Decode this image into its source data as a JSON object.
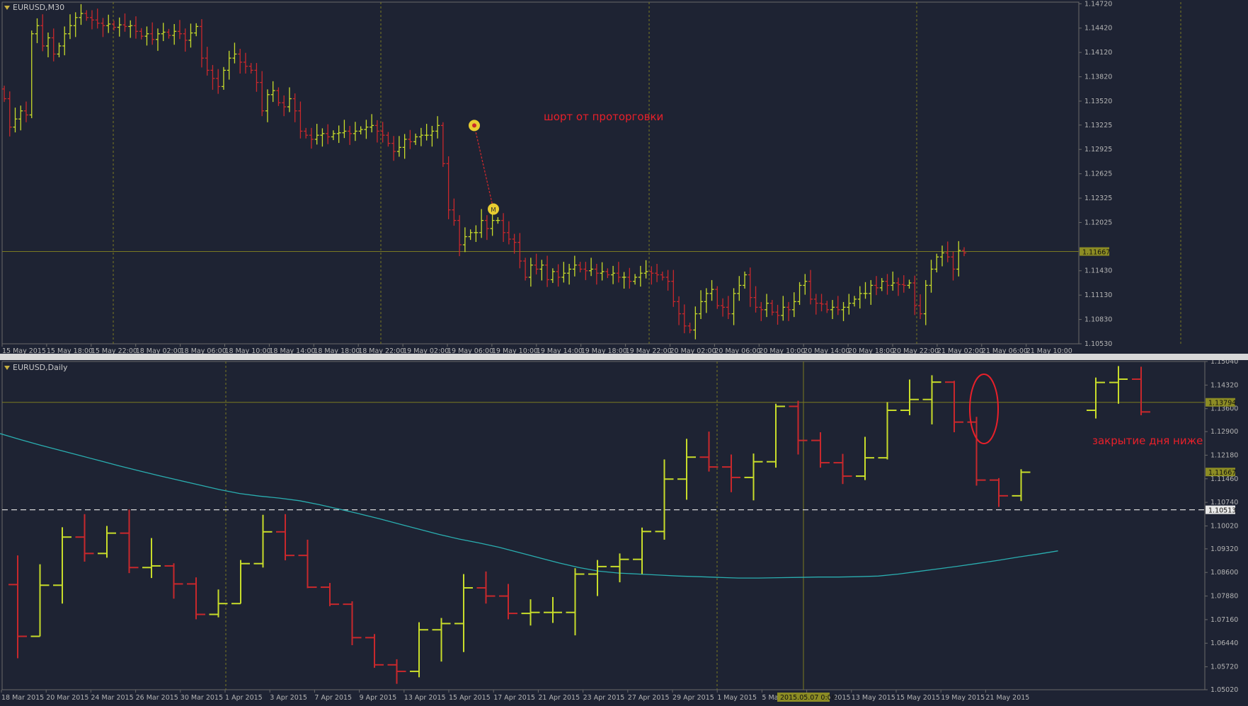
{
  "colors": {
    "background": "#1e2333",
    "grid": "#7a7a22",
    "frame": "#6a6a6a",
    "bull": "#c8dc2a",
    "bear": "#c8282c",
    "axis_text": "#b4b4b4",
    "ma_line": "#2aaeb0",
    "annotation": "#e8202a",
    "price_label_bg": "#8c8c24",
    "marker": "#e8cc30"
  },
  "chart_data": [
    {
      "type": "ohlc",
      "title": "EURUSD,M30",
      "symbol": "EURUSD",
      "timeframe": "M30",
      "ylim": [
        1.1053,
        1.1474
      ],
      "y_ticks": [
        "1.14720",
        "1.14420",
        "1.14120",
        "1.13820",
        "1.13520",
        "1.13225",
        "1.12925",
        "1.12625",
        "1.12325",
        "1.12025",
        "1.11430",
        "1.11130",
        "1.10830",
        "1.10530"
      ],
      "x_labels": [
        "15 May 2015",
        "15 May 18:00",
        "15 May 22:00",
        "18 May 02:00",
        "18 May 06:00",
        "18 May 10:00",
        "18 May 14:00",
        "18 May 18:00",
        "18 May 22:00",
        "19 May 02:00",
        "19 May 06:00",
        "19 May 10:00",
        "19 May 14:00",
        "19 May 18:00",
        "19 May 22:00",
        "20 May 02:00",
        "20 May 06:00",
        "20 May 10:00",
        "20 May 14:00",
        "20 May 18:00",
        "20 May 22:00",
        "21 May 02:00",
        "21 May 06:00",
        "21 May 10:00"
      ],
      "current_price": "1.11667",
      "annotation": "шорт от проторговки",
      "trade_entry": 1.1322,
      "trade_exit": 1.1219,
      "bar_closes": [
        1.1355,
        1.132,
        1.133,
        1.134,
        1.1335,
        1.1435,
        1.1445,
        1.142,
        1.143,
        1.141,
        1.142,
        1.1435,
        1.1445,
        1.1455,
        1.146,
        1.1455,
        1.1452,
        1.1448,
        1.1445,
        1.1447,
        1.1443,
        1.1446,
        1.1444,
        1.1445,
        1.1438,
        1.1432,
        1.1435,
        1.1428,
        1.1435,
        1.1437,
        1.1433,
        1.1438,
        1.1435,
        1.1427,
        1.1436,
        1.1444,
        1.1405,
        1.139,
        1.138,
        1.137,
        1.139,
        1.1405,
        1.141,
        1.14,
        1.1395,
        1.139,
        1.1375,
        1.134,
        1.136,
        1.1365,
        1.135,
        1.1345,
        1.1355,
        1.134,
        1.1315,
        1.131,
        1.1305,
        1.131,
        1.1312,
        1.1308,
        1.1312,
        1.1313,
        1.1315,
        1.1312,
        1.1315,
        1.1317,
        1.132,
        1.1322,
        1.1315,
        1.131,
        1.13,
        1.129,
        1.1295,
        1.1305,
        1.1302,
        1.1308,
        1.131,
        1.131,
        1.1315,
        1.1322,
        1.1275,
        1.1218,
        1.1205,
        1.1175,
        1.1185,
        1.119,
        1.119,
        1.1205,
        1.1195,
        1.1205,
        1.1205,
        1.119,
        1.1182,
        1.1178,
        1.1155,
        1.1135,
        1.115,
        1.1145,
        1.115,
        1.1132,
        1.1142,
        1.1135,
        1.114,
        1.1145,
        1.115,
        1.1145,
        1.1143,
        1.1145,
        1.114,
        1.1142,
        1.1138,
        1.114,
        1.1135,
        1.1135,
        1.113,
        1.1135,
        1.114,
        1.1142,
        1.114,
        1.1138,
        1.1135,
        1.113,
        1.1105,
        1.109,
        1.1075,
        1.107,
        1.109,
        1.1105,
        1.1115,
        1.112,
        1.11,
        1.1098,
        1.109,
        1.1115,
        1.1125,
        1.1138,
        1.111,
        1.1098,
        1.1095,
        1.1103,
        1.1092,
        1.1088,
        1.1098,
        1.1095,
        1.1105,
        1.1125,
        1.113,
        1.1108,
        1.1103,
        1.1102,
        1.1095,
        1.1098,
        1.1095,
        1.1098,
        1.1103,
        1.1108,
        1.1115,
        1.1115,
        1.1125,
        1.1122,
        1.113,
        1.1125,
        1.1128,
        1.1126,
        1.1125,
        1.1128,
        1.11,
        1.109,
        1.1125,
        1.1145,
        1.116,
        1.1165,
        1.116,
        1.1145,
        1.1168,
        1.1165
      ]
    },
    {
      "type": "ohlc",
      "title": "EURUSD,Daily",
      "symbol": "EURUSD",
      "timeframe": "Daily",
      "ylim": [
        1.0502,
        1.1504
      ],
      "y_ticks": [
        "1.15040",
        "1.14320",
        "1.13600",
        "1.12900",
        "1.12180",
        "1.11460",
        "1.10740",
        "1.10020",
        "1.09320",
        "1.08600",
        "1.07880",
        "1.07160",
        "1.06440",
        "1.05720",
        "1.05020"
      ],
      "x_labels": [
        "18 Mar 2015",
        "20 Mar 2015",
        "24 Mar 2015",
        "26 Mar 2015",
        "30 Mar 2015",
        "1 Apr 2015",
        "3 Apr 2015",
        "7 Apr 2015",
        "9 Apr 2015",
        "13 Apr 2015",
        "15 Apr 2015",
        "17 Apr 2015",
        "21 Apr 2015",
        "23 Apr 2015",
        "27 Apr 2015",
        "29 Apr 2015",
        "1 May 2015",
        "5 May 2015",
        "11 May 2015",
        "13 May 2015",
        "15 May 2015",
        "19 May 2015",
        "21 May 2015"
      ],
      "crosshair_time_label": "2015.05.07 0:00",
      "price_labels": [
        "1.13794",
        "1.11667",
        "1.10513"
      ],
      "annotation": "закрытие дня ниже",
      "bars": [
        {
          "o": 1.0823,
          "h": 1.0912,
          "l": 1.0598,
          "c": 1.0665
        },
        {
          "o": 1.0665,
          "h": 1.0885,
          "l": 1.0665,
          "c": 1.0821
        },
        {
          "o": 1.0821,
          "h": 1.0998,
          "l": 1.0765,
          "c": 1.0968
        },
        {
          "o": 1.0968,
          "h": 1.1038,
          "l": 1.0893,
          "c": 1.0918
        },
        {
          "o": 1.0918,
          "h": 1.1002,
          "l": 1.0905,
          "c": 1.098
        },
        {
          "o": 1.098,
          "h": 1.1052,
          "l": 1.0858,
          "c": 1.0875
        },
        {
          "o": 1.0875,
          "h": 1.0965,
          "l": 1.0843,
          "c": 1.088
        },
        {
          "o": 1.088,
          "h": 1.0888,
          "l": 1.078,
          "c": 1.0825
        },
        {
          "o": 1.0825,
          "h": 1.0845,
          "l": 1.0717,
          "c": 1.0732
        },
        {
          "o": 1.0732,
          "h": 1.0808,
          "l": 1.0723,
          "c": 1.0765
        },
        {
          "o": 1.0765,
          "h": 1.0898,
          "l": 1.0765,
          "c": 1.0887
        },
        {
          "o": 1.0887,
          "h": 1.1036,
          "l": 1.0875,
          "c": 1.0984
        },
        {
          "o": 1.0984,
          "h": 1.1038,
          "l": 1.0897,
          "c": 1.0912
        },
        {
          "o": 1.0912,
          "h": 1.096,
          "l": 1.0812,
          "c": 1.0815
        },
        {
          "o": 1.0815,
          "h": 1.0828,
          "l": 1.0757,
          "c": 1.0763
        },
        {
          "o": 1.0763,
          "h": 1.0772,
          "l": 1.0638,
          "c": 1.0661
        },
        {
          "o": 1.0661,
          "h": 1.0672,
          "l": 1.0569,
          "c": 1.0578
        },
        {
          "o": 1.0578,
          "h": 1.0595,
          "l": 1.052,
          "c": 1.0558
        },
        {
          "o": 1.0558,
          "h": 1.0708,
          "l": 1.054,
          "c": 1.0685
        },
        {
          "o": 1.0685,
          "h": 1.0721,
          "l": 1.0588,
          "c": 1.0704
        },
        {
          "o": 1.0704,
          "h": 1.0855,
          "l": 1.0617,
          "c": 1.0813
        },
        {
          "o": 1.0813,
          "h": 1.0863,
          "l": 1.0765,
          "c": 1.0788
        },
        {
          "o": 1.0788,
          "h": 1.0825,
          "l": 1.0717,
          "c": 1.0735
        },
        {
          "o": 1.0735,
          "h": 1.0778,
          "l": 1.0698,
          "c": 1.0738
        },
        {
          "o": 1.0738,
          "h": 1.0785,
          "l": 1.0706,
          "c": 1.0738
        },
        {
          "o": 1.0738,
          "h": 1.0873,
          "l": 1.0668,
          "c": 1.0855
        },
        {
          "o": 1.0855,
          "h": 1.0898,
          "l": 1.0788,
          "c": 1.0878
        },
        {
          "o": 1.0878,
          "h": 1.0918,
          "l": 1.083,
          "c": 1.09
        },
        {
          "o": 1.09,
          "h": 1.0997,
          "l": 1.0855,
          "c": 1.0985
        },
        {
          "o": 1.0985,
          "h": 1.1205,
          "l": 1.096,
          "c": 1.1145
        },
        {
          "o": 1.1145,
          "h": 1.1268,
          "l": 1.1082,
          "c": 1.1212
        },
        {
          "o": 1.1212,
          "h": 1.129,
          "l": 1.1168,
          "c": 1.1182
        },
        {
          "o": 1.1182,
          "h": 1.122,
          "l": 1.1105,
          "c": 1.115
        },
        {
          "o": 1.115,
          "h": 1.1223,
          "l": 1.108,
          "c": 1.1198
        },
        {
          "o": 1.1198,
          "h": 1.1375,
          "l": 1.118,
          "c": 1.1367
        },
        {
          "o": 1.1367,
          "h": 1.1384,
          "l": 1.122,
          "c": 1.1263
        },
        {
          "o": 1.1263,
          "h": 1.1288,
          "l": 1.118,
          "c": 1.1195
        },
        {
          "o": 1.1195,
          "h": 1.1222,
          "l": 1.113,
          "c": 1.1154
        },
        {
          "o": 1.1154,
          "h": 1.1274,
          "l": 1.1142,
          "c": 1.121
        },
        {
          "o": 1.121,
          "h": 1.138,
          "l": 1.1205,
          "c": 1.1355
        },
        {
          "o": 1.1355,
          "h": 1.1449,
          "l": 1.134,
          "c": 1.1388
        },
        {
          "o": 1.1388,
          "h": 1.1462,
          "l": 1.1312,
          "c": 1.1441
        },
        {
          "o": 1.1441,
          "h": 1.1445,
          "l": 1.1288,
          "c": 1.1319
        },
        {
          "o": 1.1319,
          "h": 1.1335,
          "l": 1.1125,
          "c": 1.1142
        },
        {
          "o": 1.1142,
          "h": 1.1148,
          "l": 1.106,
          "c": 1.1094
        },
        {
          "o": 1.1094,
          "h": 1.1175,
          "l": 1.1078,
          "c": 1.1166
        }
      ],
      "ma_values": [
        1.1284,
        1.1266,
        1.1249,
        1.1233,
        1.1217,
        1.1201,
        1.1185,
        1.117,
        1.1155,
        1.1141,
        1.1127,
        1.1113,
        1.1101,
        1.1093,
        1.1087,
        1.1079,
        1.1067,
        1.1053,
        1.1039,
        1.1024,
        1.1008,
        1.0992,
        1.0976,
        1.0962,
        1.095,
        1.0937,
        1.0921,
        1.0905,
        1.0889,
        1.0875,
        1.0864,
        1.0858,
        1.0855,
        1.0852,
        1.0849,
        1.0847,
        1.0845,
        1.0843,
        1.0843,
        1.0844,
        1.0845,
        1.0846,
        1.0846,
        1.0847,
        1.0849,
        1.0855,
        1.0863,
        1.0871,
        1.0879,
        1.0888,
        1.0897,
        1.0907,
        1.0916,
        1.0926
      ],
      "ghost_bars": [
        {
          "o": 1.1355,
          "h": 1.1455,
          "l": 1.133,
          "c": 1.144
        },
        {
          "o": 1.144,
          "h": 1.149,
          "l": 1.1375,
          "c": 1.145
        },
        {
          "o": 1.145,
          "h": 1.1488,
          "l": 1.134,
          "c": 1.135
        }
      ]
    }
  ]
}
